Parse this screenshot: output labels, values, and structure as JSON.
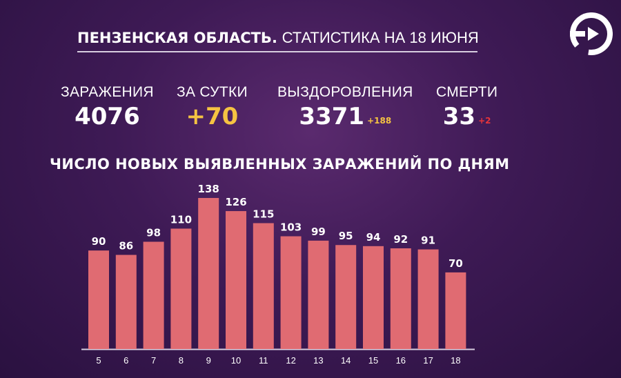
{
  "header": {
    "title_bold": "ПЕНЗЕНСКАЯ ОБЛАСТЬ.",
    "title_light": "СТАТИСТИКА НА 18 ИЮНЯ"
  },
  "stats": {
    "infections": {
      "label": "ЗАРАЖЕНИЯ",
      "value": "4076"
    },
    "daily": {
      "label": "ЗА СУТКИ",
      "value": "+70"
    },
    "recoveries": {
      "label": "ВЫЗДОРОВЛЕНИЯ",
      "value": "3371",
      "delta": "+188"
    },
    "deaths": {
      "label": "СМЕРТИ",
      "value": "33",
      "delta": "+2"
    }
  },
  "colors": {
    "bar": "#e06b72",
    "accent_yellow": "#f5c342",
    "accent_red": "#e8353a",
    "background": "#3e1a55"
  },
  "logo_icon": "play-circle-icon",
  "chart_data": {
    "type": "bar",
    "title": "ЧИСЛО НОВЫХ ВЫЯВЛЕННЫХ ЗАРАЖЕНИЙ ПО ДНЯМ",
    "categories": [
      "5",
      "6",
      "7",
      "8",
      "9",
      "10",
      "11",
      "12",
      "13",
      "14",
      "15",
      "16",
      "17",
      "18"
    ],
    "values": [
      90,
      86,
      98,
      110,
      138,
      126,
      115,
      103,
      99,
      95,
      94,
      92,
      91,
      70
    ],
    "xlabel": "",
    "ylabel": "",
    "ylim": [
      0,
      138
    ],
    "grid": false,
    "legend": "none"
  }
}
